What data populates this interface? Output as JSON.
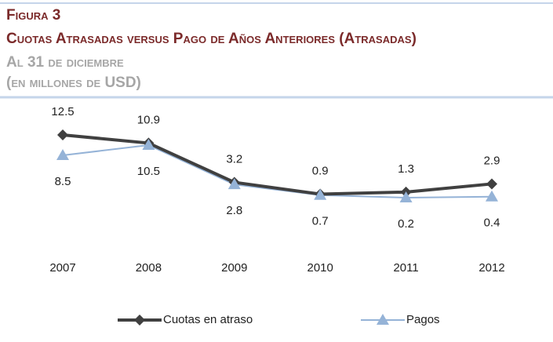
{
  "chart_data": {
    "type": "line",
    "label": "Figura 3",
    "title": "Cuotas Atrasadas versus Pago de Años Anteriores (Atrasadas)",
    "subtitle": [
      "Al 31 de diciembre",
      "(en millones de USD)"
    ],
    "categories": [
      "2007",
      "2008",
      "2009",
      "2010",
      "2011",
      "2012"
    ],
    "series": [
      {
        "name": "Cuotas en atraso",
        "color": "#404040",
        "marker": "diamond",
        "values": [
          12.5,
          10.9,
          3.2,
          0.9,
          1.3,
          2.9
        ]
      },
      {
        "name": "Pagos",
        "color": "#95b3d7",
        "marker": "triangle",
        "values": [
          8.5,
          10.5,
          2.8,
          0.7,
          0.2,
          0.4
        ]
      }
    ],
    "legend": "bottom"
  }
}
